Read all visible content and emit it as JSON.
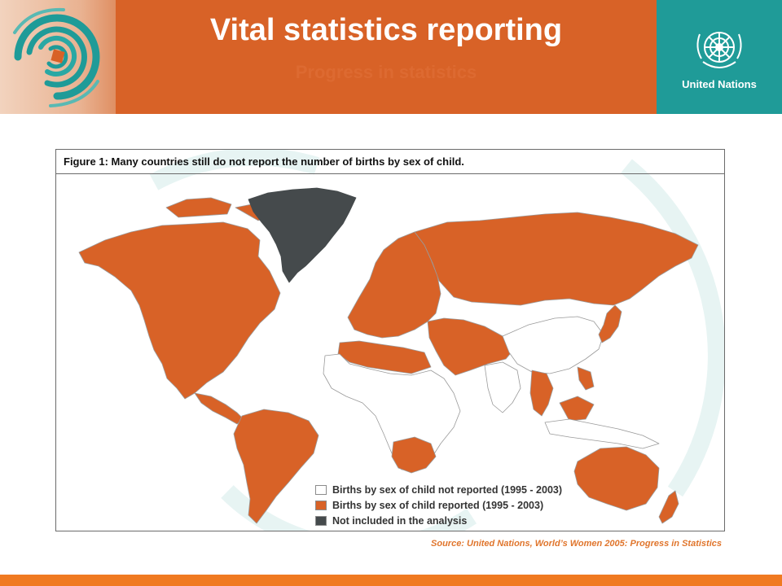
{
  "slide": {
    "title": "Vital statistics reporting",
    "subtitle": "Progress in statistics",
    "un_label": "United Nations",
    "source": "Source: United Nations,  World’s Women 2005:  Progress in Statistics"
  },
  "figure": {
    "title": "Figure 1: Many countries still do not report the number of births by sex of child.",
    "legend": [
      {
        "label": "Births by sex of child not reported (1995 - 2003)",
        "color": "#ffffff"
      },
      {
        "label": "Births by sex of child reported (1995 - 2003)",
        "color": "#d86227"
      },
      {
        "label": "Not included in the analysis",
        "color": "#454a4c"
      }
    ]
  },
  "colors": {
    "header_orange": "#d86227",
    "un_teal": "#1f9b98",
    "reported": "#d86227",
    "not_included": "#454a4c",
    "not_reported": "#ffffff"
  },
  "icons": {
    "logo": "spiral-logo-icon",
    "un": "un-emblem-icon"
  }
}
